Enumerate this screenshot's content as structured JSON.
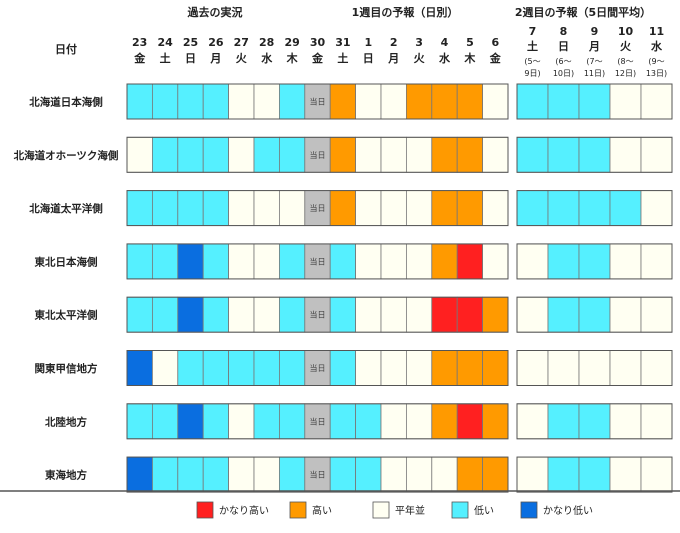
{
  "headers": {
    "row_label": "日付",
    "past": "過去の実況",
    "week1": "1週目の予報（日別）",
    "week2": "2週目の予報（5日間平均）"
  },
  "today_label": "当日",
  "colors": {
    "H": "#ff2020",
    "h": "#ff9a00",
    "n": "#fffff2",
    "l": "#55f0ff",
    "L": "#0a6ee0",
    "T": "#c0c0c0",
    "border": "#777777"
  },
  "legend": [
    {
      "key": "H",
      "label": "かなり高い"
    },
    {
      "key": "h",
      "label": "高い"
    },
    {
      "key": "n",
      "label": "平年並"
    },
    {
      "key": "l",
      "label": "低い"
    },
    {
      "key": "L",
      "label": "かなり低い"
    }
  ],
  "chart_data": {
    "type": "heatmap",
    "days": [
      {
        "date": "23",
        "dow": "金"
      },
      {
        "date": "24",
        "dow": "土"
      },
      {
        "date": "25",
        "dow": "日"
      },
      {
        "date": "26",
        "dow": "月"
      },
      {
        "date": "27",
        "dow": "火"
      },
      {
        "date": "28",
        "dow": "水"
      },
      {
        "date": "29",
        "dow": "木"
      },
      {
        "date": "30",
        "dow": "金"
      },
      {
        "date": "31",
        "dow": "土"
      },
      {
        "date": "1",
        "dow": "日"
      },
      {
        "date": "2",
        "dow": "月"
      },
      {
        "date": "3",
        "dow": "火"
      },
      {
        "date": "4",
        "dow": "水"
      },
      {
        "date": "5",
        "dow": "木"
      },
      {
        "date": "6",
        "dow": "金"
      }
    ],
    "week2_days": [
      {
        "date": "7",
        "dow": "土",
        "range1": "(5〜",
        "range2": "9日)"
      },
      {
        "date": "8",
        "dow": "日",
        "range1": "(6〜",
        "range2": "10日)"
      },
      {
        "date": "9",
        "dow": "月",
        "range1": "(7〜",
        "range2": "11日)"
      },
      {
        "date": "10",
        "dow": "火",
        "range1": "(8〜",
        "range2": "12日)"
      },
      {
        "date": "11",
        "dow": "水",
        "range1": "(9〜",
        "range2": "13日)"
      }
    ],
    "regions": [
      {
        "name": "北海道日本海側",
        "daily": [
          "l",
          "l",
          "l",
          "l",
          "n",
          "n",
          "l",
          "T",
          "h",
          "n",
          "n",
          "h",
          "h",
          "h",
          "n"
        ],
        "week2": [
          "l",
          "l",
          "l",
          "n",
          "n"
        ]
      },
      {
        "name": "北海道オホーツク海側",
        "daily": [
          "n",
          "l",
          "l",
          "l",
          "n",
          "l",
          "l",
          "T",
          "h",
          "n",
          "n",
          "n",
          "h",
          "h",
          "n"
        ],
        "week2": [
          "l",
          "l",
          "l",
          "n",
          "n"
        ]
      },
      {
        "name": "北海道太平洋側",
        "daily": [
          "l",
          "l",
          "l",
          "l",
          "n",
          "n",
          "n",
          "T",
          "h",
          "n",
          "n",
          "n",
          "h",
          "h",
          "n"
        ],
        "week2": [
          "l",
          "l",
          "l",
          "l",
          "n"
        ]
      },
      {
        "name": "東北日本海側",
        "daily": [
          "l",
          "l",
          "L",
          "l",
          "n",
          "n",
          "l",
          "T",
          "l",
          "n",
          "n",
          "n",
          "h",
          "H",
          "n"
        ],
        "week2": [
          "n",
          "l",
          "l",
          "n",
          "n"
        ]
      },
      {
        "name": "東北太平洋側",
        "daily": [
          "l",
          "l",
          "L",
          "l",
          "n",
          "n",
          "l",
          "T",
          "l",
          "n",
          "n",
          "n",
          "H",
          "H",
          "h"
        ],
        "week2": [
          "n",
          "l",
          "l",
          "n",
          "n"
        ]
      },
      {
        "name": "関東甲信地方",
        "daily": [
          "L",
          "n",
          "l",
          "l",
          "l",
          "l",
          "l",
          "T",
          "l",
          "n",
          "n",
          "n",
          "h",
          "h",
          "h"
        ],
        "week2": [
          "n",
          "n",
          "n",
          "n",
          "n"
        ]
      },
      {
        "name": "北陸地方",
        "daily": [
          "l",
          "l",
          "L",
          "l",
          "n",
          "l",
          "l",
          "T",
          "l",
          "l",
          "n",
          "n",
          "h",
          "H",
          "h"
        ],
        "week2": [
          "n",
          "l",
          "l",
          "n",
          "n"
        ]
      },
      {
        "name": "東海地方",
        "daily": [
          "L",
          "l",
          "l",
          "l",
          "n",
          "n",
          "l",
          "T",
          "l",
          "l",
          "n",
          "n",
          "n",
          "h",
          "h"
        ],
        "week2": [
          "n",
          "l",
          "l",
          "n",
          "n"
        ]
      }
    ]
  }
}
